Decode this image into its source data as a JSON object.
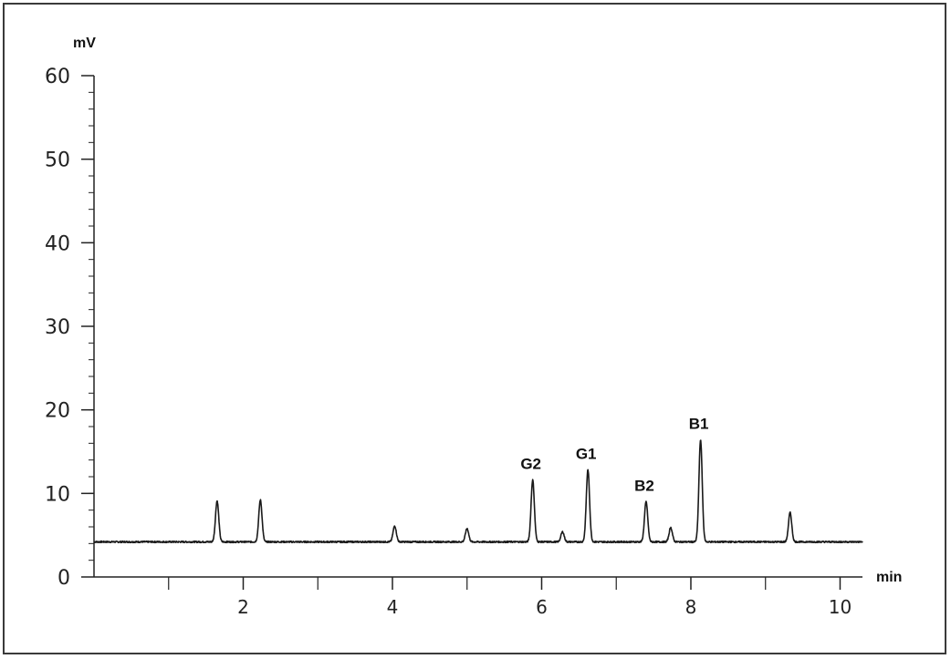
{
  "chart_data": {
    "type": "line",
    "title": "",
    "xlabel": "min",
    "ylabel": "mV",
    "xlim": [
      0,
      10.3
    ],
    "ylim": [
      0,
      60
    ],
    "grid": false,
    "baseline": 4.2,
    "yticks": [
      0,
      10,
      20,
      30,
      40,
      50,
      60
    ],
    "ytick_labels": [
      "0",
      "10",
      "20",
      "30",
      "40",
      "50",
      "60"
    ],
    "xticks": [
      2,
      4,
      6,
      8,
      10
    ],
    "xtick_labels": [
      "2",
      "4",
      "6",
      "8",
      "10"
    ],
    "xticks_minor": [
      1,
      3,
      5,
      7,
      9
    ],
    "peaks": [
      {
        "x": 1.65,
        "y": 9.1,
        "label": ""
      },
      {
        "x": 2.23,
        "y": 9.2,
        "label": ""
      },
      {
        "x": 4.03,
        "y": 6.1,
        "label": ""
      },
      {
        "x": 5.0,
        "y": 5.8,
        "label": ""
      },
      {
        "x": 5.88,
        "y": 11.6,
        "label": "G2"
      },
      {
        "x": 6.28,
        "y": 5.4,
        "label": ""
      },
      {
        "x": 6.62,
        "y": 12.8,
        "label": "G1"
      },
      {
        "x": 7.4,
        "y": 9.0,
        "label": "B2"
      },
      {
        "x": 7.73,
        "y": 5.9,
        "label": ""
      },
      {
        "x": 8.13,
        "y": 16.4,
        "label": "B1"
      },
      {
        "x": 9.33,
        "y": 7.7,
        "label": ""
      }
    ]
  }
}
